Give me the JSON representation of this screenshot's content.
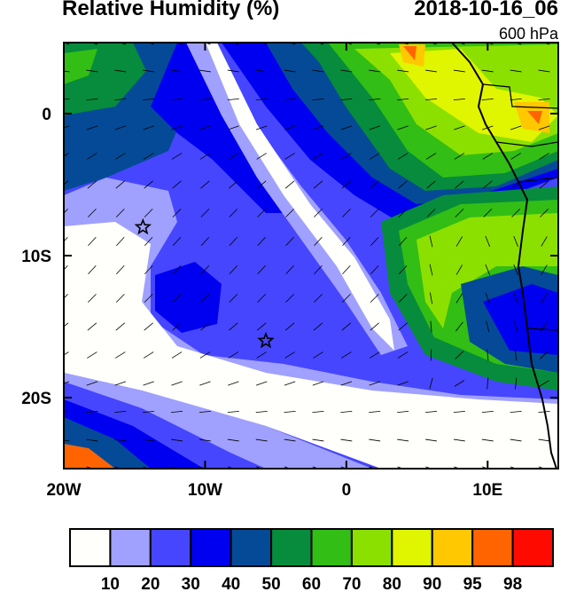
{
  "title_left": "Relative Humidity (%)",
  "title_right": "2018-10-16_06",
  "level_label": "600 hPa",
  "chart_data": {
    "type": "heatmap",
    "variable": "Relative Humidity (%)",
    "lon_range": [
      -20,
      15
    ],
    "lat_range": [
      -25,
      5
    ],
    "x_ticks": [
      {
        "value": -20,
        "label": "20W"
      },
      {
        "value": -10,
        "label": "10W"
      },
      {
        "value": 0,
        "label": "0"
      },
      {
        "value": 10,
        "label": "10E"
      }
    ],
    "y_ticks": [
      {
        "value": 0,
        "label": "0"
      },
      {
        "value": -10,
        "label": "10S"
      },
      {
        "value": -20,
        "label": "20S"
      }
    ],
    "colorbar": {
      "labels": [
        "10",
        "20",
        "30",
        "40",
        "50",
        "60",
        "70",
        "80",
        "90",
        "95",
        "98"
      ],
      "colors": [
        "#fffffc",
        "#a0a0ff",
        "#4646ff",
        "#0000f0",
        "#054a96",
        "#068c3c",
        "#32be14",
        "#8ce000",
        "#e0f500",
        "#ffc800",
        "#ff6400",
        "#ff0a00"
      ]
    },
    "markers": [
      {
        "lon": -14.4,
        "lat": -8.0,
        "symbol": "star"
      },
      {
        "lon": -5.7,
        "lat": -16.0,
        "symbol": "star"
      }
    ],
    "wind_vectors": "barbs on regular grid"
  }
}
